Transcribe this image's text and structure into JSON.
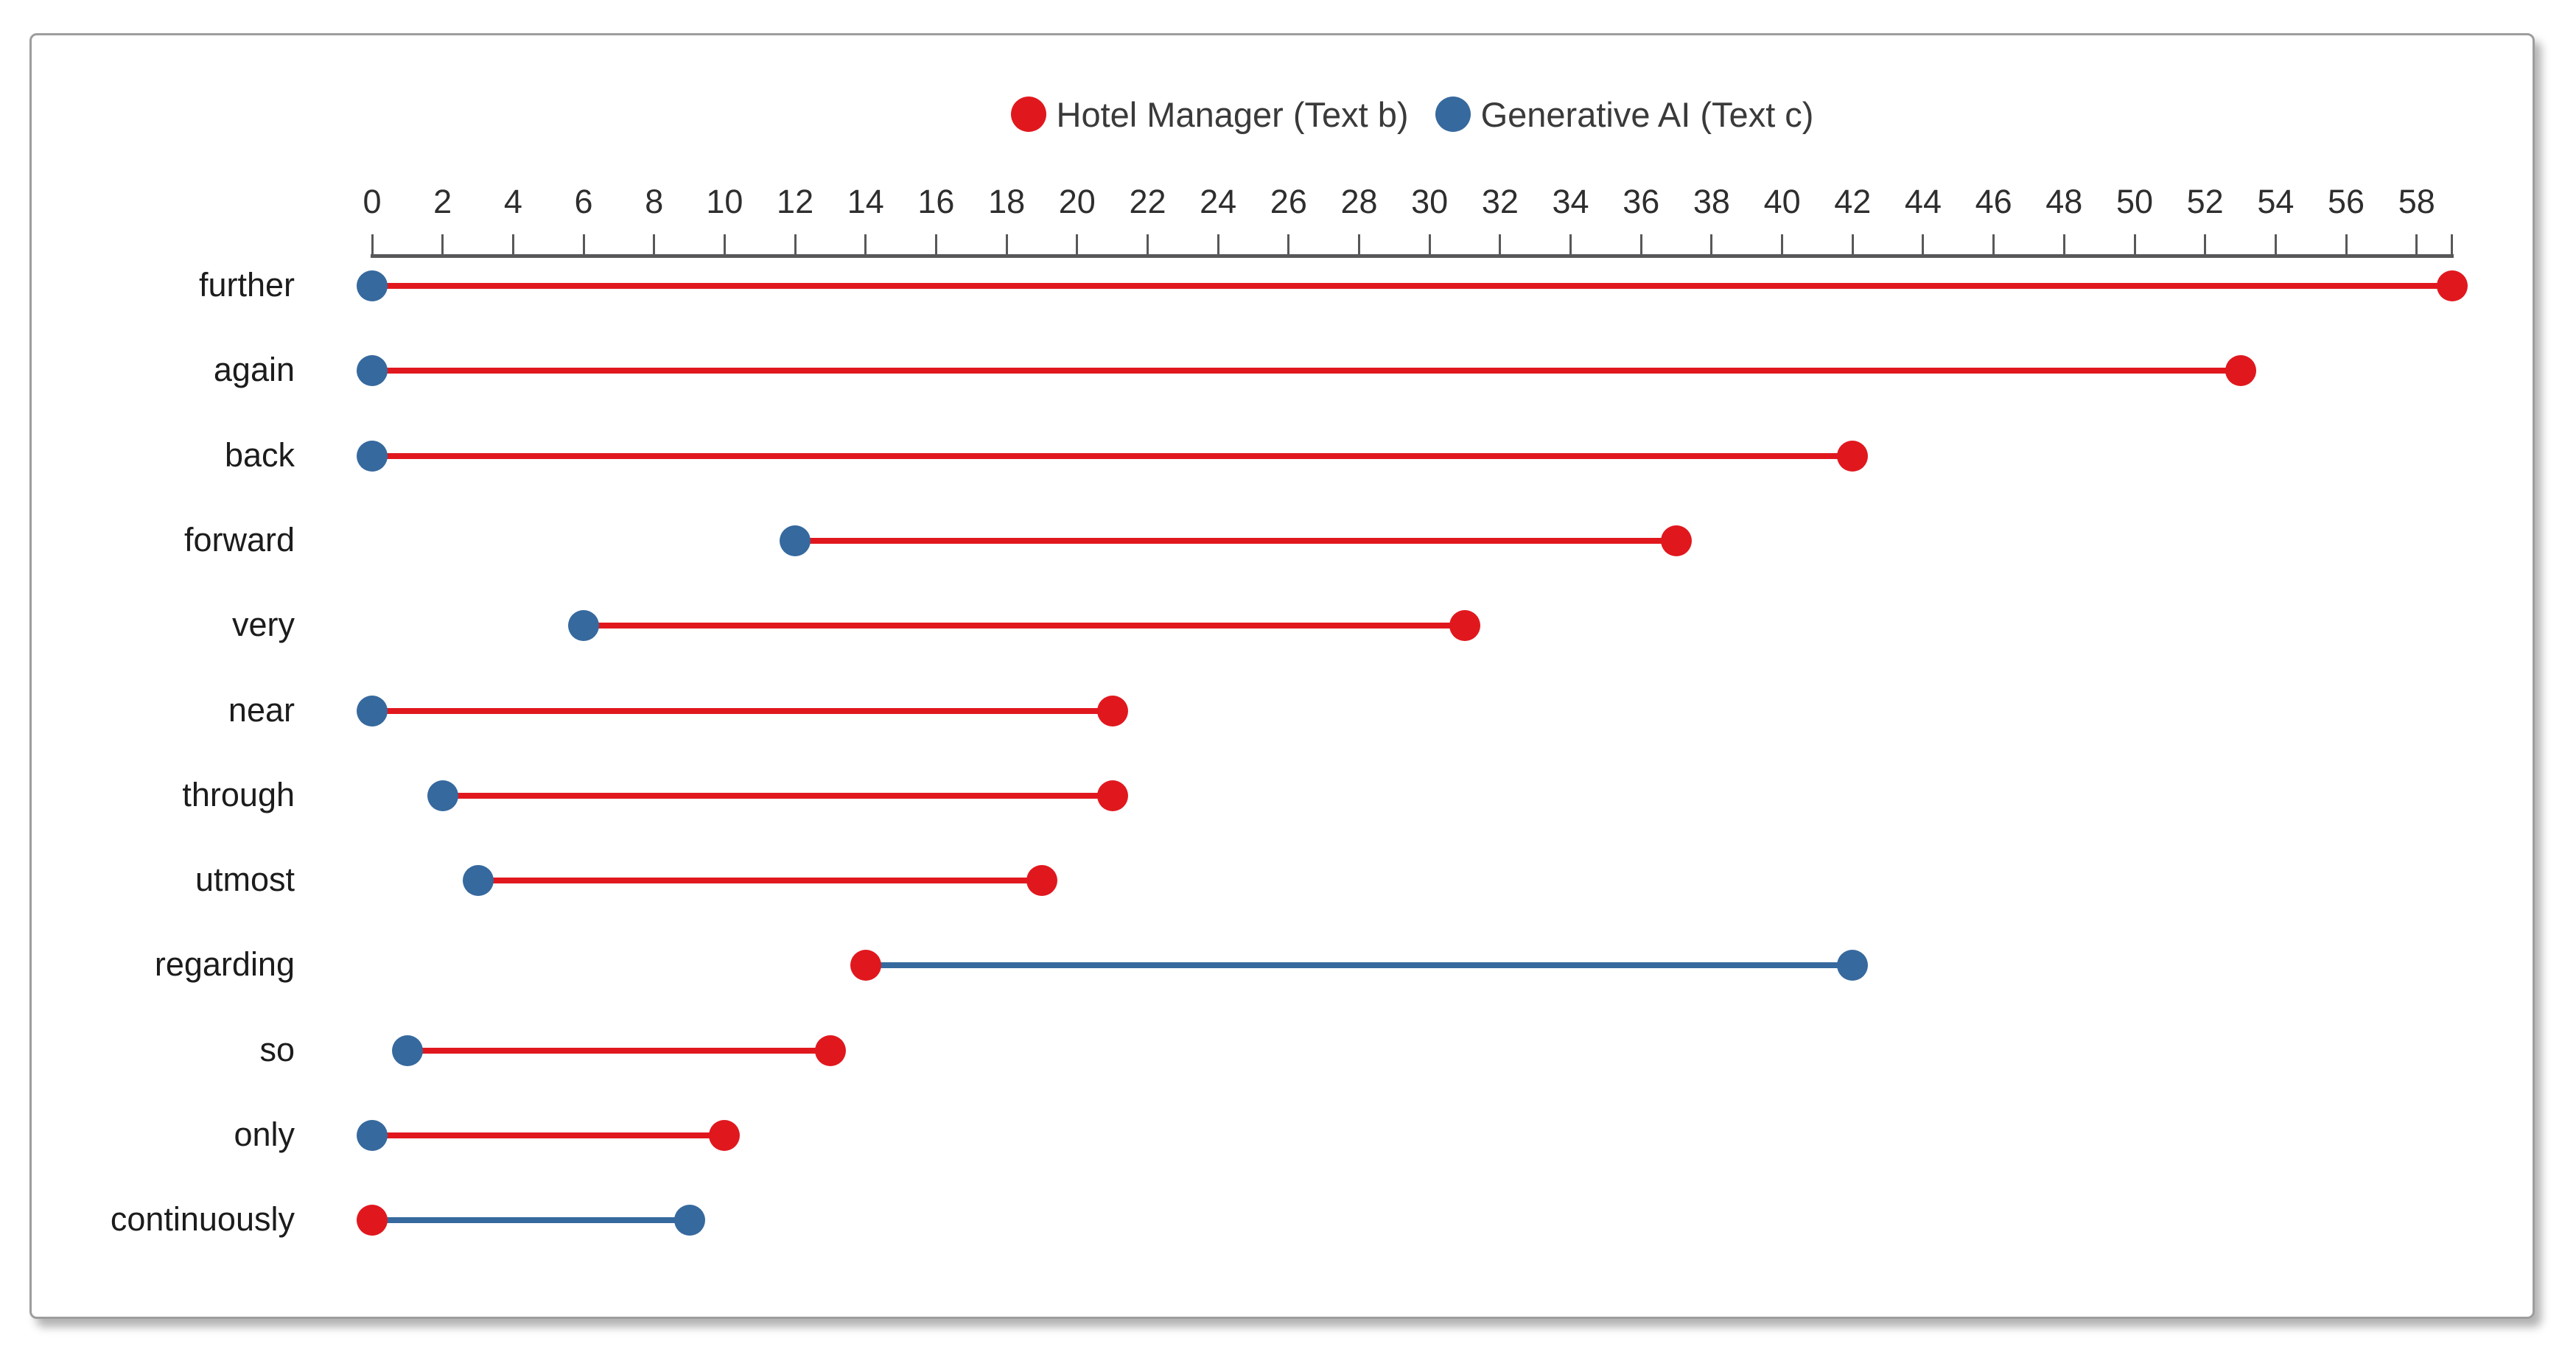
{
  "chart_data": {
    "type": "dumbbell",
    "orientation": "horizontal",
    "legend_position": "top-center",
    "legend": [
      {
        "name": "Hotel Manager (Text b)",
        "color": "#e0181e"
      },
      {
        "name": "Generative AI (Text c)",
        "color": "#36699e"
      }
    ],
    "x_axis": {
      "position": "top",
      "min": 0,
      "max": 58,
      "tick_step": 2,
      "axis_end_value": 59,
      "tick_labels": [
        "0",
        "2",
        "4",
        "6",
        "8",
        "10",
        "12",
        "14",
        "16",
        "18",
        "20",
        "22",
        "24",
        "26",
        "28",
        "30",
        "32",
        "34",
        "36",
        "38",
        "40",
        "42",
        "44",
        "46",
        "48",
        "50",
        "52",
        "54",
        "56",
        "58"
      ]
    },
    "categories": [
      "further",
      "again",
      "back",
      "forward",
      "very",
      "near",
      "through",
      "utmost",
      "regarding",
      "so",
      "only",
      "continuously"
    ],
    "series": [
      {
        "name": "Hotel Manager (Text b)",
        "color": "#e0181e",
        "values": [
          59,
          53,
          42,
          37,
          31,
          21,
          21,
          19,
          14,
          13,
          10,
          0
        ]
      },
      {
        "name": "Generative AI (Text c)",
        "color": "#36699e",
        "values": [
          0,
          0,
          0,
          12,
          6,
          0,
          2,
          3,
          42,
          1,
          0,
          9
        ]
      }
    ],
    "connector_rule": "line colored by the series with the larger value",
    "grid": false
  },
  "style": {
    "axis_color": "#58585a",
    "text_color": "#1c1c1c",
    "card_border_color": "#9d9d9d",
    "background": "#ffffff"
  }
}
